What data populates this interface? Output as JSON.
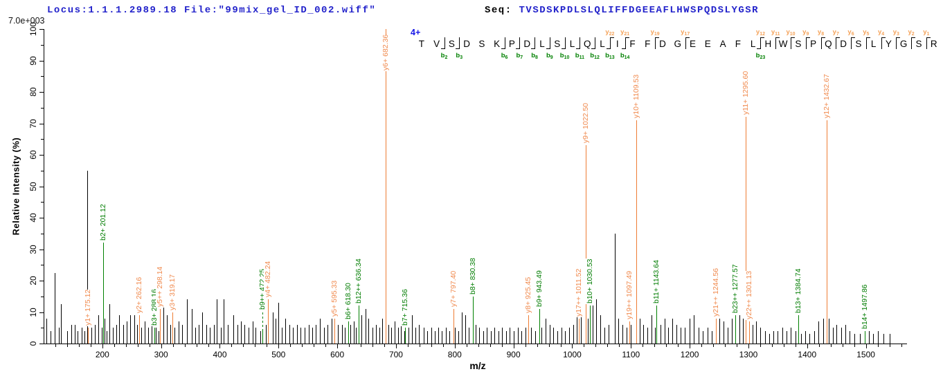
{
  "header": {
    "locus_file": "Locus:1.1.1.2989.18 File:\"99mix_gel_ID_002.wiff\"",
    "seq_label": "Seq: ",
    "sequence": "TVSDSKPDLSLQLIFFDGEEAFLHWSPQDSLYGSR"
  },
  "scale_label": "7.0e+003",
  "charge_label": "4+",
  "colors": {
    "header_blue": "#2323cb",
    "charge_blue": "#1414e6",
    "y_ion_line": "#ee7c33",
    "y_ion_text": "#f08a4e",
    "y_ladder_text": "#f4a259",
    "b_ion_line": "#008000",
    "b_ion_text": "#007c00",
    "b_ladder_text": "#008000",
    "peak_black": "#000000"
  },
  "ladder": {
    "cleavages": [
      {
        "after": 2,
        "b": "b2"
      },
      {
        "after": 3,
        "b": "b3"
      },
      {
        "after": 6,
        "b": "b6"
      },
      {
        "after": 7,
        "b": "b7"
      },
      {
        "after": 8,
        "b": "b8"
      },
      {
        "after": 9,
        "b": "b9"
      },
      {
        "after": 10,
        "b": "b10"
      },
      {
        "after": 11,
        "b": "b11"
      },
      {
        "after": 12,
        "b": "b12"
      },
      {
        "after": 13,
        "b": "b13",
        "y": "y22"
      },
      {
        "after": 14,
        "b": "b14",
        "y": "y21"
      },
      {
        "after": 16,
        "y": "y19"
      },
      {
        "after": 18,
        "y": "y17"
      },
      {
        "after": 23,
        "b": "b23",
        "y": "y12"
      },
      {
        "after": 24,
        "y": "y11"
      },
      {
        "after": 25,
        "y": "y10"
      },
      {
        "after": 26,
        "y": "y9"
      },
      {
        "after": 27,
        "y": "y8"
      },
      {
        "after": 28,
        "y": "y7"
      },
      {
        "after": 29,
        "y": "y6"
      },
      {
        "after": 30,
        "y": "y5"
      },
      {
        "after": 31,
        "y": "y4"
      },
      {
        "after": 32,
        "y": "y3"
      },
      {
        "after": 33,
        "y": "y2"
      },
      {
        "after": 34,
        "y": "y1"
      }
    ]
  },
  "chart_data": {
    "type": "bar",
    "subtype": "ms2-fragmentation-spectrum",
    "title": "",
    "xlabel": "m/z",
    "ylabel": "Relative  Intensity (%)",
    "xlim": [
      100,
      1570
    ],
    "ylim": [
      0,
      100
    ],
    "x_major_ticks": [
      200,
      300,
      400,
      500,
      600,
      700,
      800,
      900,
      1000,
      1100,
      1200,
      1300,
      1400,
      1500
    ],
    "x_minor_step": 20,
    "y_major_ticks": [
      0,
      10,
      20,
      30,
      40,
      50,
      60,
      70,
      80,
      90,
      100
    ],
    "y_minor_step": 5,
    "grid": false,
    "legend": "none",
    "annotated_peaks": [
      {
        "ion": "y1+",
        "mz": "175.12",
        "intensity": 5,
        "series": "y"
      },
      {
        "ion": "b2+",
        "mz": "201.12",
        "intensity": 32,
        "series": "b"
      },
      {
        "ion": "y2+",
        "mz": "262.16",
        "intensity": 9,
        "series": "y"
      },
      {
        "ion": "b3+",
        "mz": "288.16",
        "intensity": 5,
        "series": "b"
      },
      {
        "ion": "y5++",
        "mz": "298.14",
        "intensity": 11,
        "series": "y"
      },
      {
        "ion": "y3+",
        "mz": "319.17",
        "intensity": 10,
        "series": "y"
      },
      {
        "ion": "b9++",
        "mz": "472.25",
        "intensity": 4,
        "series": "b",
        "leader": 30
      },
      {
        "ion": "y4+",
        "mz": "482.24",
        "intensity": 14,
        "series": "y"
      },
      {
        "ion": "y5+",
        "mz": "595.33",
        "intensity": 8,
        "series": "y"
      },
      {
        "ion": "b6+",
        "mz": "618.30",
        "intensity": 7,
        "series": "b"
      },
      {
        "ion": "b12++",
        "mz": "636.34",
        "intensity": 12,
        "series": "b"
      },
      {
        "ion": "y6+",
        "mz": "682.36",
        "intensity": 100,
        "series": "y"
      },
      {
        "ion": "b7+",
        "mz": "715.36",
        "intensity": 5,
        "series": "b"
      },
      {
        "ion": "y7+",
        "mz": "797.40",
        "intensity": 11,
        "series": "y"
      },
      {
        "ion": "b8+",
        "mz": "830.38",
        "intensity": 15,
        "series": "b"
      },
      {
        "ion": "y8+",
        "mz": "925.45",
        "intensity": 9,
        "series": "y"
      },
      {
        "ion": "b9+",
        "mz": "943.49",
        "intensity": 11,
        "series": "b"
      },
      {
        "ion": "y17++",
        "mz": "1011.52",
        "intensity": 8,
        "series": "y"
      },
      {
        "ion": "y9+",
        "mz": "1022.50",
        "intensity": 63,
        "series": "y"
      },
      {
        "ion": "b10+",
        "mz": "1030.53",
        "intensity": 12,
        "series": "b"
      },
      {
        "ion": "y19++",
        "mz": "1097.49",
        "intensity": 7,
        "series": "y"
      },
      {
        "ion": "y10+",
        "mz": "1109.53",
        "intensity": 71,
        "series": "y"
      },
      {
        "ion": "b11+",
        "mz": "1143.64",
        "intensity": 12,
        "series": "b"
      },
      {
        "ion": "y21++",
        "mz": "1244.56",
        "intensity": 8,
        "series": "y"
      },
      {
        "ion": "b23++",
        "mz": "1277.57",
        "intensity": 9,
        "series": "b"
      },
      {
        "ion": "y11+",
        "mz": "1295.60",
        "intensity": 72,
        "series": "y"
      },
      {
        "ion": "y22++",
        "mz": "1301.13",
        "intensity": 7,
        "series": "y"
      },
      {
        "ion": "b13+",
        "mz": "1384.74",
        "intensity": 9,
        "series": "b"
      },
      {
        "ion": "y12+",
        "mz": "1432.67",
        "intensity": 71,
        "series": "y"
      },
      {
        "ion": "b14+",
        "mz": "1497.86",
        "intensity": 4,
        "series": "b"
      }
    ],
    "unlabeled_peaks": [
      [
        105,
        8
      ],
      [
        112,
        4
      ],
      [
        119,
        22.5
      ],
      [
        126,
        5
      ],
      [
        129,
        12.5
      ],
      [
        140,
        4
      ],
      [
        147,
        6
      ],
      [
        153,
        6
      ],
      [
        158,
        4
      ],
      [
        165,
        5
      ],
      [
        170,
        4
      ],
      [
        174,
        55
      ],
      [
        181,
        5
      ],
      [
        187,
        6
      ],
      [
        193,
        9
      ],
      [
        199,
        5
      ],
      [
        204,
        8
      ],
      [
        207,
        4
      ],
      [
        212,
        12.5
      ],
      [
        218,
        5
      ],
      [
        224,
        6
      ],
      [
        229,
        9
      ],
      [
        235,
        6
      ],
      [
        241,
        7
      ],
      [
        247,
        9
      ],
      [
        254,
        9
      ],
      [
        259,
        6
      ],
      [
        266,
        5
      ],
      [
        272,
        7
      ],
      [
        278,
        5
      ],
      [
        284,
        6
      ],
      [
        291,
        5
      ],
      [
        296,
        4
      ],
      [
        304,
        13
      ],
      [
        310,
        9
      ],
      [
        316,
        6
      ],
      [
        323,
        5
      ],
      [
        330,
        7
      ],
      [
        336,
        6
      ],
      [
        344,
        14
      ],
      [
        352,
        11
      ],
      [
        358,
        5
      ],
      [
        364,
        6
      ],
      [
        370,
        10
      ],
      [
        377,
        6
      ],
      [
        383,
        5
      ],
      [
        390,
        6
      ],
      [
        395,
        14
      ],
      [
        402,
        5
      ],
      [
        407,
        14
      ],
      [
        414,
        6
      ],
      [
        423,
        9
      ],
      [
        430,
        6
      ],
      [
        436,
        7
      ],
      [
        442,
        6
      ],
      [
        449,
        5
      ],
      [
        456,
        7
      ],
      [
        461,
        5
      ],
      [
        469,
        4
      ],
      [
        478,
        6
      ],
      [
        490,
        10
      ],
      [
        495,
        8
      ],
      [
        500,
        13
      ],
      [
        506,
        5
      ],
      [
        512,
        8
      ],
      [
        518,
        6
      ],
      [
        524,
        5
      ],
      [
        531,
        6
      ],
      [
        537,
        5
      ],
      [
        544,
        5
      ],
      [
        551,
        6
      ],
      [
        557,
        5
      ],
      [
        563,
        6
      ],
      [
        570,
        8
      ],
      [
        577,
        5
      ],
      [
        583,
        6
      ],
      [
        590,
        8
      ],
      [
        601,
        6
      ],
      [
        608,
        6
      ],
      [
        613,
        5
      ],
      [
        622,
        6
      ],
      [
        628,
        7
      ],
      [
        632,
        5
      ],
      [
        641,
        9
      ],
      [
        648,
        11
      ],
      [
        653,
        8
      ],
      [
        660,
        5
      ],
      [
        666,
        6
      ],
      [
        672,
        5
      ],
      [
        677,
        8
      ],
      [
        687,
        6
      ],
      [
        692,
        5
      ],
      [
        698,
        7
      ],
      [
        703,
        5
      ],
      [
        708,
        6
      ],
      [
        714,
        4
      ],
      [
        721,
        5
      ],
      [
        727,
        9
      ],
      [
        733,
        5
      ],
      [
        739,
        6
      ],
      [
        747,
        5
      ],
      [
        753,
        4
      ],
      [
        760,
        5
      ],
      [
        766,
        4
      ],
      [
        772,
        5
      ],
      [
        778,
        4
      ],
      [
        785,
        5
      ],
      [
        791,
        4
      ],
      [
        800,
        5
      ],
      [
        806,
        4
      ],
      [
        812,
        10
      ],
      [
        818,
        9
      ],
      [
        824,
        5
      ],
      [
        836,
        6
      ],
      [
        842,
        5
      ],
      [
        848,
        4
      ],
      [
        854,
        5
      ],
      [
        861,
        4
      ],
      [
        868,
        5
      ],
      [
        874,
        4
      ],
      [
        880,
        5
      ],
      [
        887,
        4
      ],
      [
        893,
        5
      ],
      [
        900,
        4
      ],
      [
        907,
        5
      ],
      [
        913,
        4
      ],
      [
        920,
        5
      ],
      [
        930,
        5
      ],
      [
        937,
        4
      ],
      [
        948,
        5
      ],
      [
        955,
        8
      ],
      [
        962,
        6
      ],
      [
        968,
        5
      ],
      [
        975,
        4
      ],
      [
        982,
        5
      ],
      [
        988,
        4
      ],
      [
        995,
        5
      ],
      [
        1002,
        6
      ],
      [
        1008,
        9
      ],
      [
        1015,
        9
      ],
      [
        1027,
        8
      ],
      [
        1035,
        12
      ],
      [
        1041,
        14
      ],
      [
        1048,
        9
      ],
      [
        1055,
        5
      ],
      [
        1062,
        6
      ],
      [
        1072,
        35
      ],
      [
        1079,
        8
      ],
      [
        1086,
        6
      ],
      [
        1093,
        5
      ],
      [
        1100,
        6
      ],
      [
        1115,
        8
      ],
      [
        1121,
        6
      ],
      [
        1128,
        5
      ],
      [
        1135,
        9
      ],
      [
        1141,
        5
      ],
      [
        1150,
        6
      ],
      [
        1157,
        8
      ],
      [
        1163,
        5
      ],
      [
        1170,
        8
      ],
      [
        1178,
        6
      ],
      [
        1185,
        5
      ],
      [
        1192,
        5
      ],
      [
        1200,
        8
      ],
      [
        1207,
        9
      ],
      [
        1215,
        5
      ],
      [
        1222,
        4
      ],
      [
        1230,
        5
      ],
      [
        1238,
        4
      ],
      [
        1251,
        8
      ],
      [
        1258,
        7
      ],
      [
        1265,
        5
      ],
      [
        1272,
        8
      ],
      [
        1285,
        9
      ],
      [
        1291,
        8
      ],
      [
        1307,
        6
      ],
      [
        1313,
        7
      ],
      [
        1320,
        5
      ],
      [
        1328,
        4
      ],
      [
        1335,
        3
      ],
      [
        1342,
        4
      ],
      [
        1350,
        4
      ],
      [
        1358,
        5
      ],
      [
        1365,
        4
      ],
      [
        1372,
        5
      ],
      [
        1380,
        4
      ],
      [
        1390,
        3
      ],
      [
        1397,
        4
      ],
      [
        1404,
        3
      ],
      [
        1412,
        4
      ],
      [
        1419,
        7
      ],
      [
        1427,
        8
      ],
      [
        1437,
        8
      ],
      [
        1444,
        5
      ],
      [
        1450,
        6
      ],
      [
        1458,
        5
      ],
      [
        1465,
        6
      ],
      [
        1472,
        4
      ],
      [
        1480,
        3
      ],
      [
        1490,
        3
      ],
      [
        1505,
        4
      ],
      [
        1512,
        3
      ],
      [
        1520,
        4
      ],
      [
        1530,
        3
      ],
      [
        1540,
        3
      ]
    ]
  }
}
